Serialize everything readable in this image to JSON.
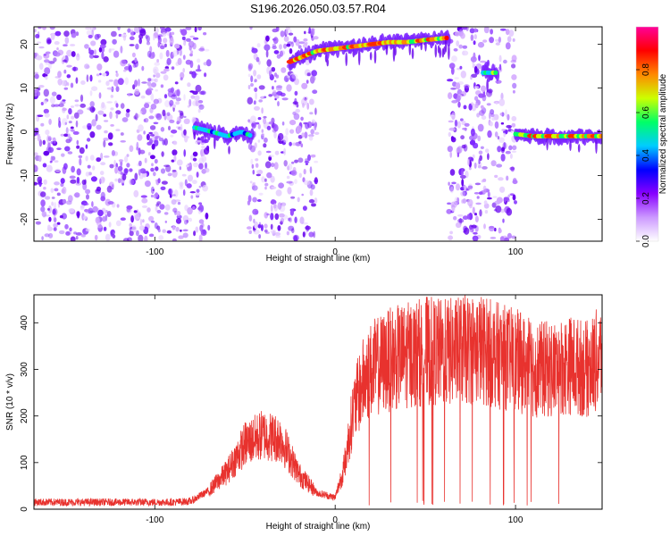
{
  "title": "S196.2026.050.03.57.R04",
  "chart_data": [
    {
      "type": "heatmap",
      "xlabel": "Height of straight line (km)",
      "ylabel": "Frequency (Hz)",
      "xlim": [
        -167,
        148
      ],
      "ylim": [
        -25,
        24
      ],
      "xticks": [
        -100,
        0,
        100
      ],
      "yticks": [
        -20,
        -10,
        0,
        10,
        20
      ],
      "colorbar": {
        "label": "Normalized spectral amplitude",
        "range": [
          0,
          1
        ],
        "ticks": [
          0.0,
          0.2,
          0.4,
          0.6,
          0.8
        ],
        "colors": [
          "#ffffff",
          "#cc99ff",
          "#8800ff",
          "#0000ff",
          "#00ccff",
          "#00ff66",
          "#ccff00",
          "#ff8800",
          "#ff0000",
          "#ff0099"
        ]
      },
      "signal_tracks": [
        {
          "x": [
            -78,
            -68,
            -60,
            -52,
            -46
          ],
          "freq": [
            1,
            0,
            -1,
            0,
            -1
          ],
          "amplitude": 0.4
        },
        {
          "x": [
            -25,
            -10,
            0,
            10,
            20,
            30,
            40,
            50,
            63
          ],
          "freq": [
            16,
            18.5,
            19,
            19.5,
            20,
            20.5,
            20.5,
            21,
            21.5
          ],
          "amplitude": 0.9
        },
        {
          "x": [
            82,
            90
          ],
          "freq": [
            13.5,
            13.5
          ],
          "amplitude": 0.6
        },
        {
          "x": [
            100,
            110,
            120,
            130,
            140,
            148
          ],
          "freq": [
            -0.5,
            -1,
            -1,
            -1,
            -1,
            -1
          ],
          "amplitude": 0.9
        }
      ],
      "noise_regions": [
        [
          -167,
          -70
        ],
        [
          -48,
          -10
        ],
        [
          63,
          100
        ]
      ]
    },
    {
      "type": "line",
      "xlabel": "Height of straight line (km)",
      "ylabel": "SNR (10 * v/v)",
      "xlim": [
        -167,
        148
      ],
      "ylim": [
        0,
        460
      ],
      "xticks": [
        -100,
        0,
        100
      ],
      "yticks": [
        0,
        100,
        200,
        300,
        400
      ],
      "color": "#e8322e",
      "series": [
        {
          "x": [
            -167,
            -150,
            -130,
            -110,
            -90,
            -80,
            -70,
            -60,
            -50,
            -40,
            -30,
            -20,
            -10,
            0,
            5,
            10,
            15,
            20,
            30,
            40,
            50,
            60,
            70,
            80,
            90,
            100,
            110,
            120,
            130,
            140,
            148
          ],
          "values": [
            15,
            15,
            15,
            15,
            15,
            17,
            40,
            80,
            140,
            160,
            150,
            75,
            35,
            25,
            90,
            210,
            270,
            300,
            320,
            330,
            340,
            335,
            340,
            345,
            330,
            320,
            300,
            300,
            310,
            300,
            330
          ]
        }
      ]
    }
  ]
}
